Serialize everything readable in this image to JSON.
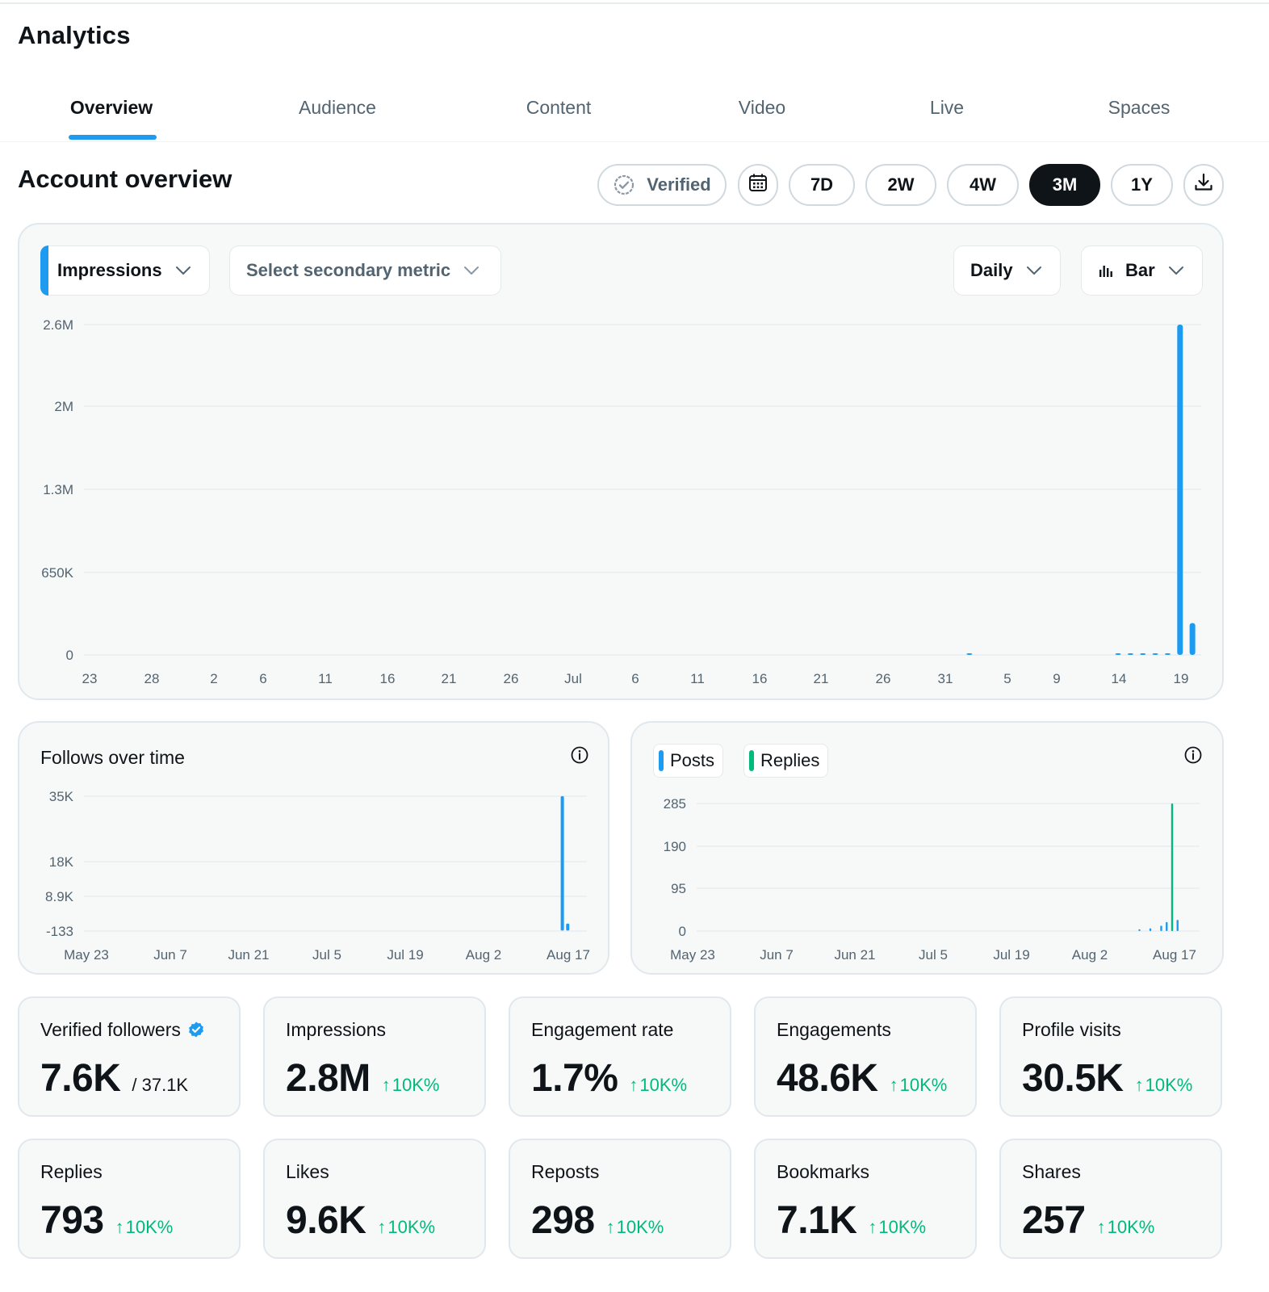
{
  "app": {
    "title": "Analytics"
  },
  "tabs": [
    {
      "label": "Overview",
      "active": true
    },
    {
      "label": "Audience",
      "active": false
    },
    {
      "label": "Content",
      "active": false
    },
    {
      "label": "Video",
      "active": false
    },
    {
      "label": "Live",
      "active": false
    },
    {
      "label": "Spaces",
      "active": false
    }
  ],
  "overview": {
    "title": "Account overview",
    "verified_label": "Verified",
    "ranges": [
      "7D",
      "2W",
      "4W",
      "3M",
      "1Y"
    ],
    "active_range": "3M",
    "icons": {
      "calendar": "calendar-icon",
      "download": "download-icon",
      "verified": "verified-check-icon"
    }
  },
  "main_chart_controls": {
    "primary_metric": "Impressions",
    "secondary_metric_placeholder": "Select secondary metric",
    "interval": "Daily",
    "chart_style": "Bar"
  },
  "follows_chart": {
    "title": "Follows over time"
  },
  "posts_chart": {
    "legend": [
      "Posts",
      "Replies"
    ]
  },
  "colors": {
    "accent": "#1d9bf0",
    "replies": "#00ba7c",
    "positive": "#00ba7c",
    "active_pill": "#0f1419"
  },
  "chart_data": [
    {
      "type": "bar",
      "title": "Impressions",
      "y_ticks": [
        "2.6M",
        "2M",
        "1.3M",
        "650K",
        "0"
      ],
      "ylim": [
        0,
        2600000
      ],
      "x_ticks": [
        "23",
        "28",
        "2",
        "6",
        "11",
        "16",
        "21",
        "26",
        "Jul",
        "6",
        "11",
        "16",
        "21",
        "26",
        "31",
        "5",
        "9",
        "14",
        "19"
      ],
      "series": [
        {
          "name": "Impressions",
          "points": [
            {
              "date": "Aug 2",
              "value": 3000
            },
            {
              "date": "Aug 14",
              "value": 3000
            },
            {
              "date": "Aug 15",
              "value": 3000
            },
            {
              "date": "Aug 16",
              "value": 3000
            },
            {
              "date": "Aug 17",
              "value": 3000
            },
            {
              "date": "Aug 18",
              "value": 5000
            },
            {
              "date": "Aug 19",
              "value": 2600000
            },
            {
              "date": "Aug 20",
              "value": 250000
            }
          ]
        }
      ],
      "grid": true
    },
    {
      "type": "bar",
      "title": "Follows over time",
      "y_ticks": [
        "35K",
        "18K",
        "8.9K",
        "-133"
      ],
      "ylim": [
        -133,
        35000
      ],
      "x_ticks": [
        "May 23",
        "Jun 7",
        "Jun 21",
        "Jul 5",
        "Jul 19",
        "Aug 2",
        "Aug 17"
      ],
      "series": [
        {
          "name": "Follows",
          "points": [
            {
              "date": "Aug 19",
              "value": 35000
            },
            {
              "date": "Aug 20",
              "value": 1800
            }
          ]
        }
      ],
      "grid": true
    },
    {
      "type": "bar",
      "y_ticks": [
        "285",
        "190",
        "95",
        "0"
      ],
      "ylim": [
        0,
        285
      ],
      "x_ticks": [
        "May 23",
        "Jun 7",
        "Jun 21",
        "Jul 5",
        "Jul 19",
        "Aug 2",
        "Aug 17"
      ],
      "series": [
        {
          "name": "Posts",
          "points": [
            {
              "date": "Aug 13",
              "value": 4
            },
            {
              "date": "Aug 15",
              "value": 6
            },
            {
              "date": "Aug 17",
              "value": 12
            },
            {
              "date": "Aug 18",
              "value": 20
            },
            {
              "date": "Aug 20",
              "value": 25
            }
          ]
        },
        {
          "name": "Replies",
          "points": [
            {
              "date": "Aug 19",
              "value": 285
            }
          ]
        }
      ],
      "legend": "top-left",
      "grid": true
    }
  ],
  "stats": [
    {
      "label": "Verified followers",
      "value": "7.6K",
      "sub": "/ 37.1K",
      "change": "",
      "verified_badge": true
    },
    {
      "label": "Impressions",
      "value": "2.8M",
      "sub": "",
      "change": "10K%"
    },
    {
      "label": "Engagement rate",
      "value": "1.7%",
      "sub": "",
      "change": "10K%"
    },
    {
      "label": "Engagements",
      "value": "48.6K",
      "sub": "",
      "change": "10K%"
    },
    {
      "label": "Profile visits",
      "value": "30.5K",
      "sub": "",
      "change": "10K%"
    },
    {
      "label": "Replies",
      "value": "793",
      "sub": "",
      "change": "10K%"
    },
    {
      "label": "Likes",
      "value": "9.6K",
      "sub": "",
      "change": "10K%"
    },
    {
      "label": "Reposts",
      "value": "298",
      "sub": "",
      "change": "10K%"
    },
    {
      "label": "Bookmarks",
      "value": "7.1K",
      "sub": "",
      "change": "10K%"
    },
    {
      "label": "Shares",
      "value": "257",
      "sub": "",
      "change": "10K%"
    }
  ]
}
